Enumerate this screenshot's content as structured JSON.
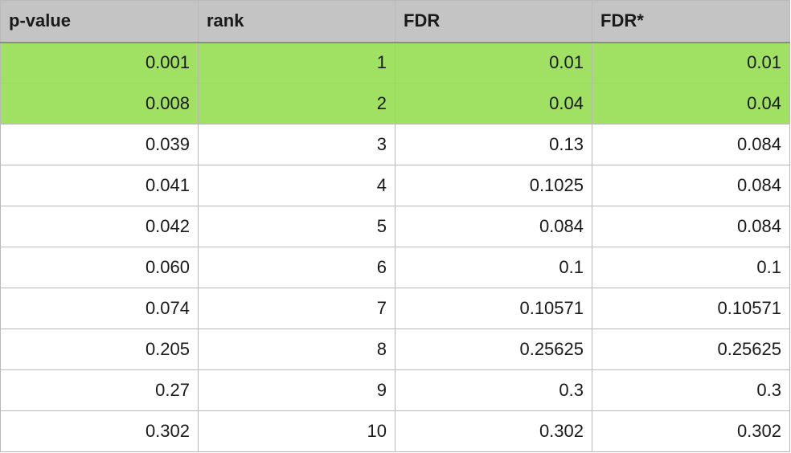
{
  "table": {
    "headers": [
      "p-value",
      "rank",
      "FDR",
      "FDR*"
    ],
    "highlight_color": "#a0e063",
    "header_color": "#c4c4c4",
    "rows": [
      {
        "cells": [
          "0.001",
          "1",
          "0.01",
          "0.01"
        ],
        "highlighted": true
      },
      {
        "cells": [
          "0.008",
          "2",
          "0.04",
          "0.04"
        ],
        "highlighted": true
      },
      {
        "cells": [
          "0.039",
          "3",
          "0.13",
          "0.084"
        ],
        "highlighted": false
      },
      {
        "cells": [
          "0.041",
          "4",
          "0.1025",
          "0.084"
        ],
        "highlighted": false
      },
      {
        "cells": [
          "0.042",
          "5",
          "0.084",
          "0.084"
        ],
        "highlighted": false
      },
      {
        "cells": [
          "0.060",
          "6",
          "0.1",
          "0.1"
        ],
        "highlighted": false
      },
      {
        "cells": [
          "0.074",
          "7",
          "0.10571",
          "0.10571"
        ],
        "highlighted": false
      },
      {
        "cells": [
          "0.205",
          "8",
          "0.25625",
          "0.25625"
        ],
        "highlighted": false
      },
      {
        "cells": [
          "0.27",
          "9",
          "0.3",
          "0.3"
        ],
        "highlighted": false
      },
      {
        "cells": [
          "0.302",
          "10",
          "0.302",
          "0.302"
        ],
        "highlighted": false
      }
    ]
  }
}
